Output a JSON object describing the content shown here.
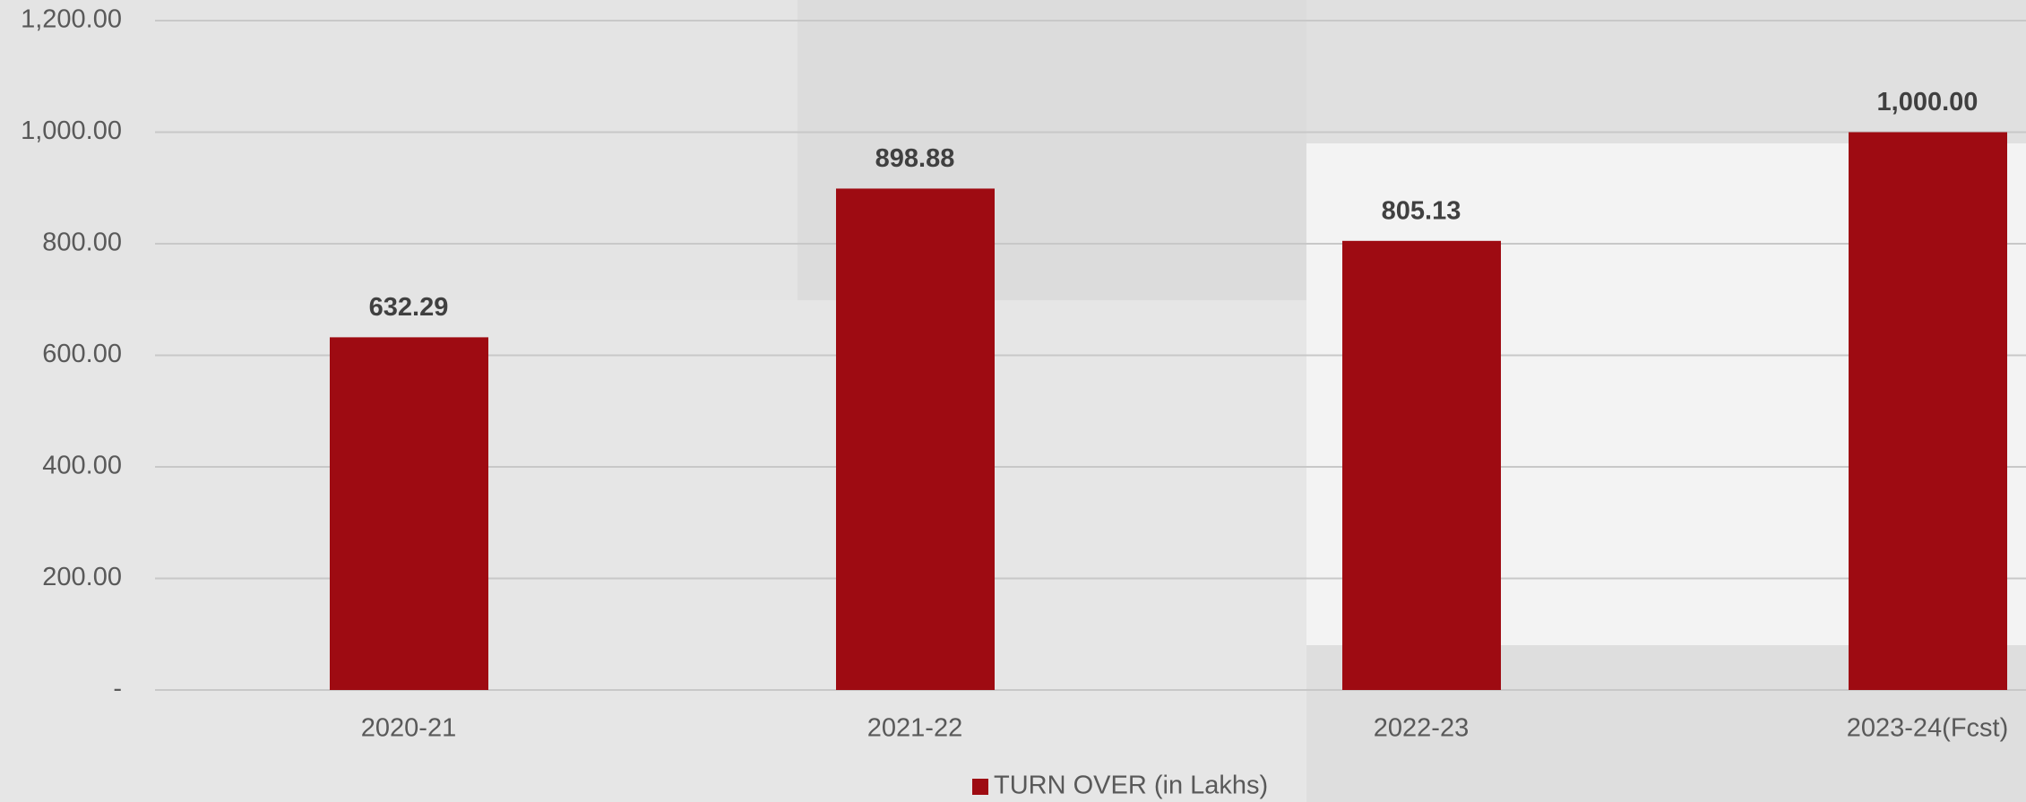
{
  "chart_data": {
    "type": "bar",
    "categories": [
      "2020-21",
      "2021-22",
      "2022-23",
      "2023-24(Fcst)"
    ],
    "series": [
      {
        "name": "TURN OVER (in Lakhs)",
        "color": "#9e0b12",
        "values": [
          632.29,
          898.88,
          805.13,
          1000
        ],
        "value_labels": [
          "632.29",
          "898.88",
          "805.13",
          "1,000.00"
        ]
      }
    ],
    "ylim": [
      0,
      1200
    ],
    "yticks": [
      {
        "value": 0,
        "label": "-"
      },
      {
        "value": 200,
        "label": "200.00"
      },
      {
        "value": 400,
        "label": "400.00"
      },
      {
        "value": 600,
        "label": "600.00"
      },
      {
        "value": 800,
        "label": "800.00"
      },
      {
        "value": 1000,
        "label": "1,000.00"
      },
      {
        "value": 1200,
        "label": "1,200.00"
      }
    ],
    "grid": true,
    "legend": "bottom"
  }
}
